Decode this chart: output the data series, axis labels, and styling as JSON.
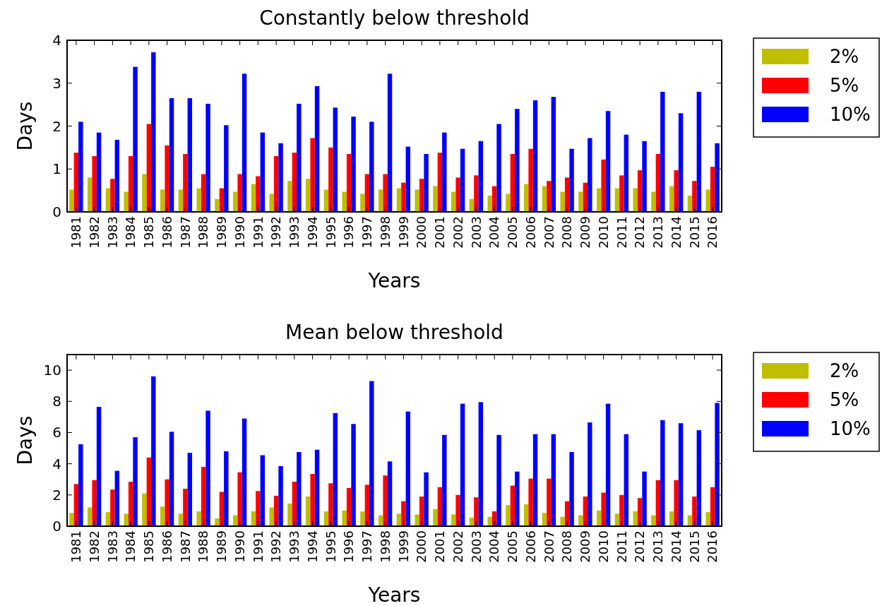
{
  "chart_data": [
    {
      "type": "bar",
      "title": "Constantly below threshold",
      "xlabel": "Years",
      "ylabel": "Days",
      "categories": [
        "1981",
        "1982",
        "1983",
        "1984",
        "1985",
        "1986",
        "1987",
        "1988",
        "1989",
        "1990",
        "1991",
        "1992",
        "1993",
        "1994",
        "1995",
        "1996",
        "1997",
        "1998",
        "1999",
        "2000",
        "2001",
        "2002",
        "2003",
        "2004",
        "2005",
        "2006",
        "2007",
        "2008",
        "2009",
        "2010",
        "2011",
        "2012",
        "2013",
        "2014",
        "2015",
        "2016"
      ],
      "series": [
        {
          "name": "2%",
          "color": "#bfbf00",
          "values": [
            0.52,
            0.8,
            0.55,
            0.47,
            0.88,
            0.52,
            0.52,
            0.55,
            0.3,
            0.47,
            0.65,
            0.42,
            0.72,
            0.77,
            0.52,
            0.47,
            0.42,
            0.52,
            0.55,
            0.52,
            0.6,
            0.47,
            0.3,
            0.38,
            0.42,
            0.65,
            0.6,
            0.47,
            0.47,
            0.55,
            0.55,
            0.55,
            0.47,
            0.6,
            0.38,
            0.52
          ]
        },
        {
          "name": "5%",
          "color": "#ff0000",
          "values": [
            1.38,
            1.3,
            0.77,
            1.3,
            2.05,
            1.55,
            1.35,
            0.88,
            0.55,
            0.88,
            0.83,
            1.3,
            1.38,
            1.72,
            1.5,
            1.35,
            0.88,
            0.88,
            0.68,
            0.77,
            1.38,
            0.8,
            0.85,
            0.6,
            1.35,
            1.47,
            0.72,
            0.8,
            0.68,
            1.22,
            0.85,
            0.97,
            1.35,
            0.97,
            0.72,
            1.05
          ]
        },
        {
          "name": "10%",
          "color": "#0000ff",
          "values": [
            2.1,
            1.85,
            1.68,
            3.38,
            3.72,
            2.65,
            2.65,
            2.52,
            2.02,
            3.22,
            1.85,
            1.6,
            2.52,
            2.93,
            2.43,
            2.22,
            2.1,
            3.22,
            1.52,
            1.35,
            1.85,
            1.47,
            1.65,
            2.05,
            2.4,
            2.6,
            2.68,
            1.47,
            1.72,
            2.35,
            1.8,
            1.65,
            2.8,
            2.3,
            2.8,
            1.6
          ]
        }
      ],
      "ylim": [
        0,
        4
      ],
      "yticks": [
        0,
        1,
        2,
        3,
        4
      ],
      "legend": "top right"
    },
    {
      "type": "bar",
      "title": "Mean below threshold",
      "xlabel": "Years",
      "ylabel": "Days",
      "categories": [
        "1981",
        "1982",
        "1983",
        "1984",
        "1985",
        "1986",
        "1987",
        "1988",
        "1989",
        "1990",
        "1991",
        "1992",
        "1993",
        "1994",
        "1995",
        "1996",
        "1997",
        "1998",
        "1999",
        "2000",
        "2001",
        "2002",
        "2003",
        "2004",
        "2005",
        "2006",
        "2007",
        "2008",
        "2009",
        "2010",
        "2011",
        "2012",
        "2013",
        "2014",
        "2015",
        "2016"
      ],
      "series": [
        {
          "name": "2%",
          "color": "#bfbf00",
          "values": [
            0.85,
            1.2,
            0.9,
            0.8,
            2.1,
            1.25,
            0.8,
            0.95,
            0.5,
            0.7,
            0.95,
            1.2,
            1.45,
            1.9,
            0.95,
            1.0,
            0.95,
            0.7,
            0.8,
            0.75,
            1.1,
            0.75,
            0.55,
            0.6,
            1.35,
            1.4,
            0.85,
            0.6,
            0.7,
            1.0,
            0.8,
            0.95,
            0.7,
            0.95,
            0.7,
            0.9
          ]
        },
        {
          "name": "5%",
          "color": "#ff0000",
          "values": [
            2.7,
            2.95,
            2.35,
            2.85,
            4.4,
            3.0,
            2.4,
            3.8,
            2.2,
            3.45,
            2.25,
            1.95,
            2.85,
            3.35,
            2.75,
            2.45,
            2.65,
            3.25,
            1.6,
            1.9,
            2.5,
            2.0,
            1.85,
            0.95,
            2.6,
            3.05,
            3.05,
            1.6,
            1.9,
            2.15,
            2.0,
            1.8,
            2.95,
            2.95,
            1.9,
            2.5
          ]
        },
        {
          "name": "10%",
          "color": "#0000ff",
          "values": [
            5.25,
            7.65,
            3.55,
            5.7,
            9.6,
            6.05,
            4.7,
            7.4,
            4.8,
            6.9,
            4.55,
            3.85,
            4.75,
            4.9,
            7.25,
            6.55,
            9.3,
            4.15,
            7.35,
            3.45,
            5.85,
            7.85,
            7.95,
            5.85,
            3.5,
            5.9,
            5.9,
            4.75,
            6.65,
            7.85,
            5.9,
            3.5,
            6.8,
            6.6,
            6.15,
            7.9
          ]
        }
      ],
      "ylim": [
        0,
        11
      ],
      "yticks": [
        0,
        2,
        4,
        6,
        8,
        10
      ],
      "legend": "top right"
    }
  ]
}
